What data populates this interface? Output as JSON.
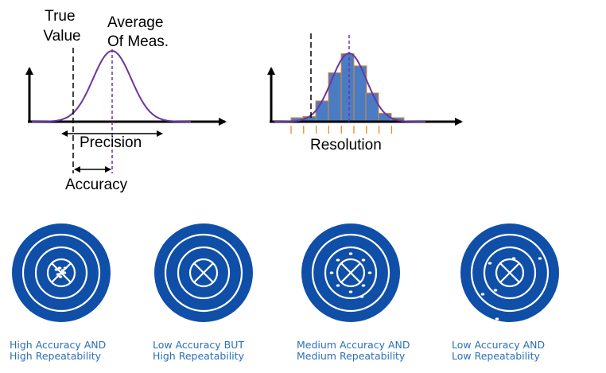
{
  "left_plot": {
    "true_value_label": [
      "True",
      "Value"
    ],
    "average_label": [
      "Average",
      "Of Meas."
    ],
    "precision_label": "Precision",
    "accuracy_label": "Accuracy"
  },
  "right_plot": {
    "resolution_label": "Resolution"
  },
  "targets": [
    {
      "caption": [
        "High Accuracy AND",
        "High Repeatability"
      ]
    },
    {
      "caption": [
        "Low Accuracy BUT",
        "High Repeatability"
      ]
    },
    {
      "caption": [
        "Medium Accuracy AND",
        "Medium Repeatability"
      ]
    },
    {
      "caption": [
        "Low Accuracy AND",
        "Low Repeatability"
      ]
    }
  ],
  "colors": {
    "curve": "#6a35a3",
    "histogram_fill": "#4a7cc4",
    "histogram_edge": "#e8892c",
    "target_blue": "#0f4fa8",
    "caption_text": "#2a6fb8"
  }
}
